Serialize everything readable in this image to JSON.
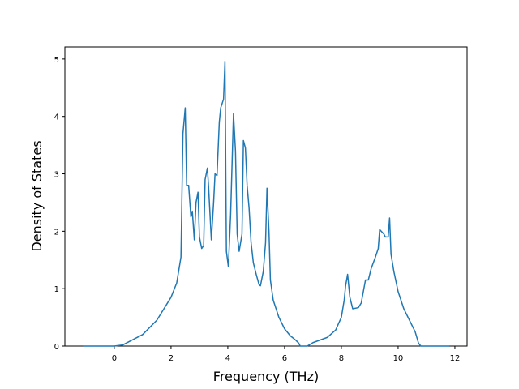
{
  "chart_data": {
    "type": "line",
    "xlabel": "Frequency (THz)",
    "ylabel": "Density of States",
    "x": [
      -1.1,
      0,
      0.3,
      1.0,
      1.5,
      2.0,
      2.2,
      2.35,
      2.42,
      2.5,
      2.55,
      2.62,
      2.7,
      2.75,
      2.82,
      2.88,
      2.95,
      3.0,
      3.08,
      3.15,
      3.2,
      3.28,
      3.32,
      3.42,
      3.5,
      3.55,
      3.62,
      3.7,
      3.75,
      3.85,
      3.9,
      3.95,
      4.02,
      4.1,
      4.2,
      4.27,
      4.33,
      4.4,
      4.5,
      4.55,
      4.62,
      4.68,
      4.75,
      4.82,
      4.9,
      5.0,
      5.1,
      5.15,
      5.25,
      5.33,
      5.38,
      5.45,
      5.5,
      5.6,
      5.8,
      6.0,
      6.2,
      6.4,
      6.5,
      6.55,
      6.8,
      7.0,
      7.5,
      7.8,
      8.0,
      8.1,
      8.15,
      8.22,
      8.3,
      8.4,
      8.6,
      8.7,
      8.85,
      8.95,
      9.05,
      9.2,
      9.3,
      9.35,
      9.5,
      9.55,
      9.65,
      9.7,
      9.75,
      9.85,
      10.0,
      10.2,
      10.4,
      10.6,
      10.72,
      10.8,
      11.8
    ],
    "series": [
      {
        "color": "#1f77b4",
        "values": [
          0,
          0,
          0.02,
          0.2,
          0.45,
          0.85,
          1.1,
          1.55,
          3.7,
          4.15,
          2.8,
          2.8,
          2.25,
          2.35,
          1.85,
          2.5,
          2.68,
          1.9,
          1.7,
          1.75,
          2.9,
          3.1,
          2.8,
          1.85,
          2.5,
          3.0,
          2.97,
          3.9,
          4.15,
          4.3,
          4.96,
          1.65,
          1.38,
          2.3,
          4.05,
          3.4,
          1.95,
          1.65,
          1.95,
          3.58,
          3.45,
          2.8,
          2.4,
          1.8,
          1.45,
          1.25,
          1.07,
          1.05,
          1.3,
          1.8,
          2.75,
          2.0,
          1.15,
          0.8,
          0.5,
          0.3,
          0.18,
          0.1,
          0.05,
          0,
          0,
          0.06,
          0.15,
          0.28,
          0.5,
          0.8,
          1.05,
          1.25,
          0.85,
          0.65,
          0.67,
          0.75,
          1.15,
          1.15,
          1.35,
          1.55,
          1.7,
          2.03,
          1.95,
          1.9,
          1.9,
          2.23,
          1.6,
          1.3,
          0.95,
          0.65,
          0.45,
          0.25,
          0.05,
          0,
          0
        ]
      }
    ],
    "xlim": [
      -1.74,
      12.43
    ],
    "ylim": [
      0,
      5.21
    ],
    "xticks": [
      0,
      2,
      4,
      6,
      8,
      10,
      12
    ],
    "yticks": [
      0,
      1,
      2,
      3,
      4,
      5
    ]
  }
}
